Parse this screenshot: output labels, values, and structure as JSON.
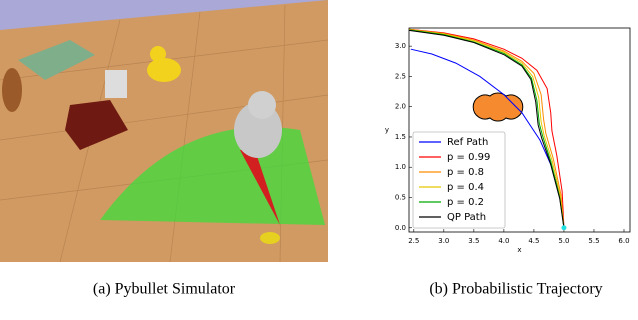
{
  "subfigures": [
    {
      "caption": "(a) Pybullet Simulator"
    },
    {
      "caption": "(b) Probabilistic Trajectory"
    }
  ],
  "chart_data": {
    "type": "line",
    "xlabel": "x",
    "ylabel": "y",
    "xlim": [
      2.42,
      6.1
    ],
    "ylim": [
      -0.07,
      3.3
    ],
    "xticks": [
      {
        "value": 2.5,
        "label": "2.5"
      },
      {
        "value": 3,
        "label": "3.0"
      },
      {
        "value": 3.5,
        "label": "3.5"
      },
      {
        "value": 4,
        "label": "4.0"
      },
      {
        "value": 4.5,
        "label": "4.5"
      },
      {
        "value": 5,
        "label": "5.0"
      },
      {
        "value": 5.5,
        "label": "5.5"
      },
      {
        "value": 6,
        "label": "6.0"
      }
    ],
    "yticks": [
      {
        "value": 0,
        "label": "0.0"
      },
      {
        "value": 0.5,
        "label": "0.5"
      },
      {
        "value": 1,
        "label": "1.0"
      },
      {
        "value": 1.5,
        "label": "1.5"
      },
      {
        "value": 2,
        "label": "2.0"
      },
      {
        "value": 2.5,
        "label": "2.5"
      },
      {
        "value": 3,
        "label": "3.0"
      }
    ],
    "legend": "lower left",
    "series": [
      {
        "name": "Ref Path",
        "color": "#0000ff",
        "x": [
          2.45,
          2.8,
          3.2,
          3.6,
          4.0,
          4.3,
          4.6,
          4.8,
          4.95,
          5.0
        ],
        "values": [
          2.95,
          2.87,
          2.72,
          2.5,
          2.2,
          1.9,
          1.45,
          1.0,
          0.45,
          0.0
        ]
      },
      {
        "name": "p = 0.99",
        "color": "#ff0000",
        "x": [
          2.42,
          3.0,
          3.5,
          4.0,
          4.3,
          4.55,
          4.72,
          4.78,
          4.8,
          4.88,
          4.97,
          5.0
        ],
        "values": [
          3.28,
          3.22,
          3.12,
          2.95,
          2.8,
          2.6,
          2.3,
          1.9,
          1.6,
          1.2,
          0.6,
          0.0
        ]
      },
      {
        "name": "p = 0.8",
        "color": "#ff8c00",
        "x": [
          2.42,
          3.0,
          3.5,
          4.0,
          4.3,
          4.5,
          4.62,
          4.66,
          4.7,
          4.82,
          4.95,
          5.0
        ],
        "values": [
          3.28,
          3.21,
          3.1,
          2.92,
          2.75,
          2.55,
          2.2,
          1.8,
          1.55,
          1.15,
          0.55,
          0.0
        ]
      },
      {
        "name": "p = 0.4",
        "color": "#e6c800",
        "x": [
          2.42,
          3.0,
          3.5,
          4.0,
          4.3,
          4.48,
          4.58,
          4.62,
          4.67,
          4.8,
          4.94,
          5.0
        ],
        "values": [
          3.27,
          3.2,
          3.09,
          2.9,
          2.72,
          2.5,
          2.15,
          1.75,
          1.52,
          1.12,
          0.52,
          0.0
        ]
      },
      {
        "name": "p = 0.2",
        "color": "#00aa00",
        "x": [
          2.42,
          3.0,
          3.5,
          4.0,
          4.3,
          4.46,
          4.55,
          4.59,
          4.65,
          4.78,
          4.93,
          5.0
        ],
        "values": [
          3.27,
          3.19,
          3.07,
          2.88,
          2.69,
          2.47,
          2.1,
          1.72,
          1.5,
          1.1,
          0.5,
          0.0
        ]
      },
      {
        "name": "QP Path",
        "color": "#000000",
        "x": [
          2.42,
          3.0,
          3.5,
          4.0,
          4.3,
          4.45,
          4.53,
          4.57,
          4.63,
          4.77,
          4.93,
          5.0
        ],
        "values": [
          3.26,
          3.18,
          3.06,
          2.86,
          2.67,
          2.45,
          2.08,
          1.7,
          1.48,
          1.08,
          0.48,
          0.0
        ]
      }
    ]
  }
}
